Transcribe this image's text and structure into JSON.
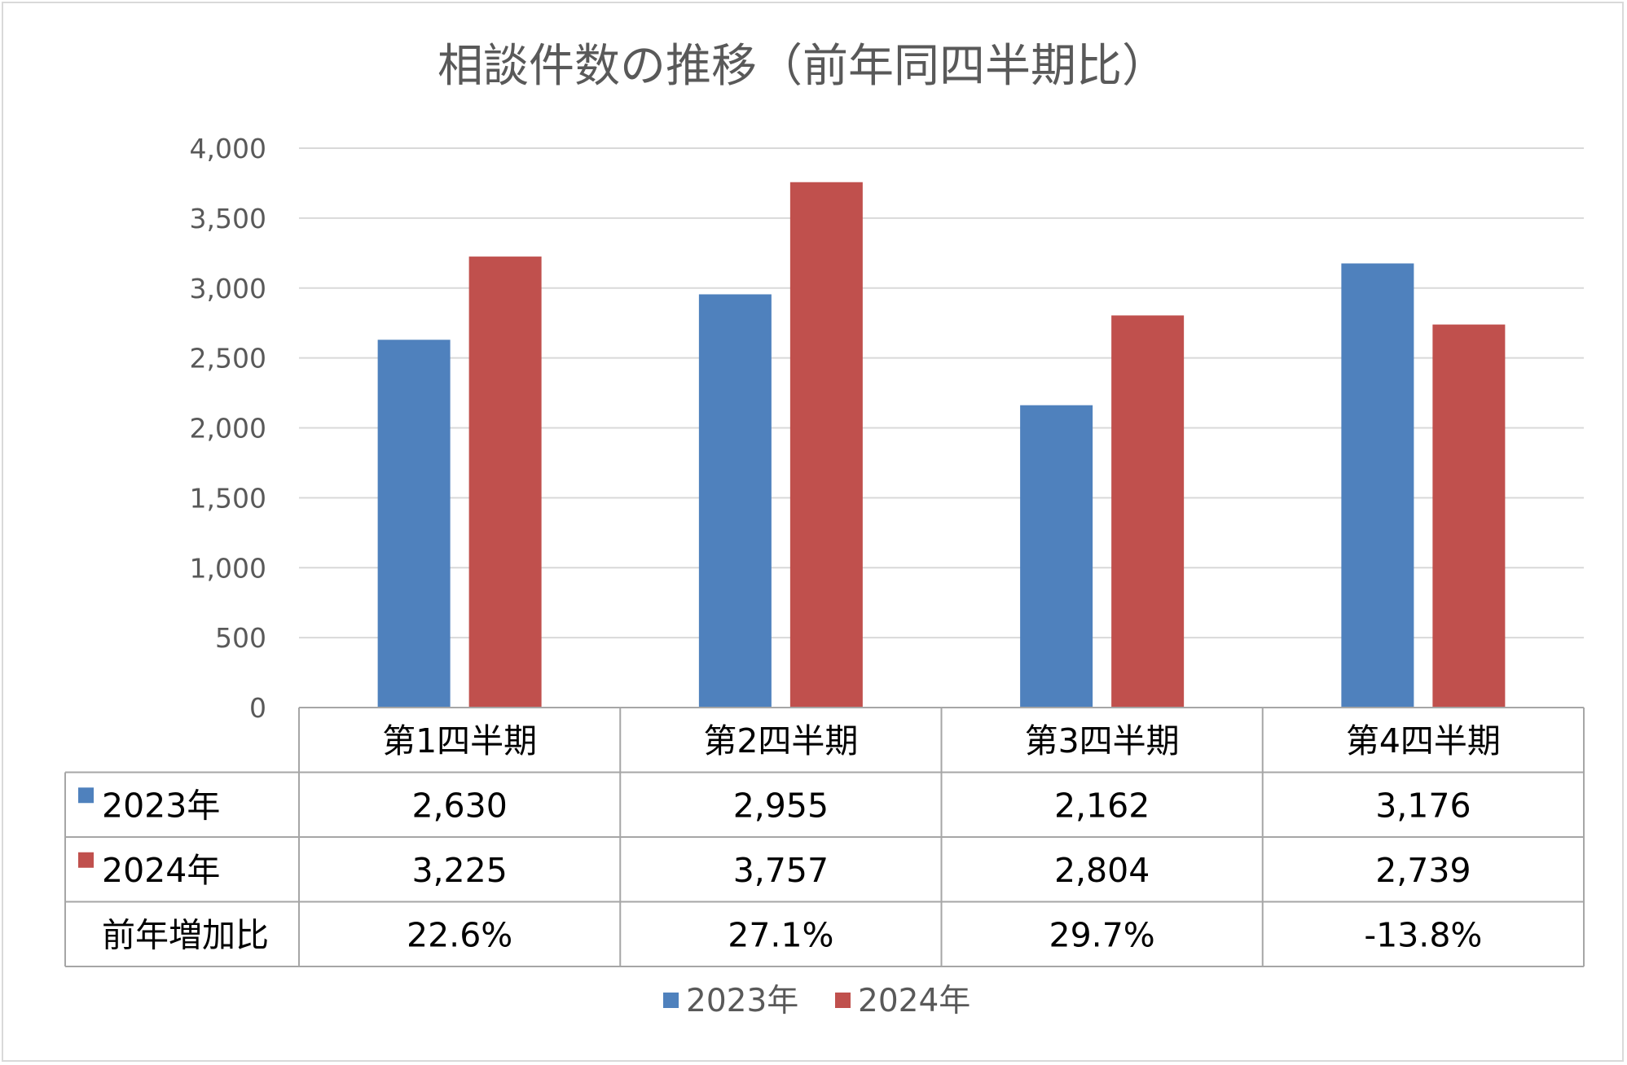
{
  "chart_data": {
    "type": "bar",
    "title": "相談件数の推移（前年同四半期比）",
    "categories": [
      "第1四半期",
      "第2四半期",
      "第3四半期",
      "第4四半期"
    ],
    "series": [
      {
        "name": "2023年",
        "values": [
          2630,
          2955,
          2162,
          3176
        ],
        "color": "#4f81bd",
        "labels": [
          "2,630",
          "2,955",
          "2,162",
          "3,176"
        ]
      },
      {
        "name": "2024年",
        "values": [
          3225,
          3757,
          2804,
          2739
        ],
        "color": "#c0504d",
        "labels": [
          "3,225",
          "3,757",
          "2,804",
          "2,739"
        ]
      }
    ],
    "growth_row": {
      "label": "前年増加比",
      "values": [
        "22.6%",
        "27.1%",
        "29.7%",
        "-13.8%"
      ]
    },
    "ylim": [
      0,
      4000
    ],
    "yticks": [
      0,
      500,
      1000,
      1500,
      2000,
      2500,
      3000,
      3500,
      4000
    ],
    "ytick_labels": [
      "0",
      "500",
      "1,000",
      "1,500",
      "2,000",
      "2,500",
      "3,000",
      "3,500",
      "4,000"
    ],
    "grid": true,
    "legend": {
      "placement": "bottom",
      "entries": [
        "2023年",
        "2024年"
      ]
    },
    "data_table": true
  }
}
